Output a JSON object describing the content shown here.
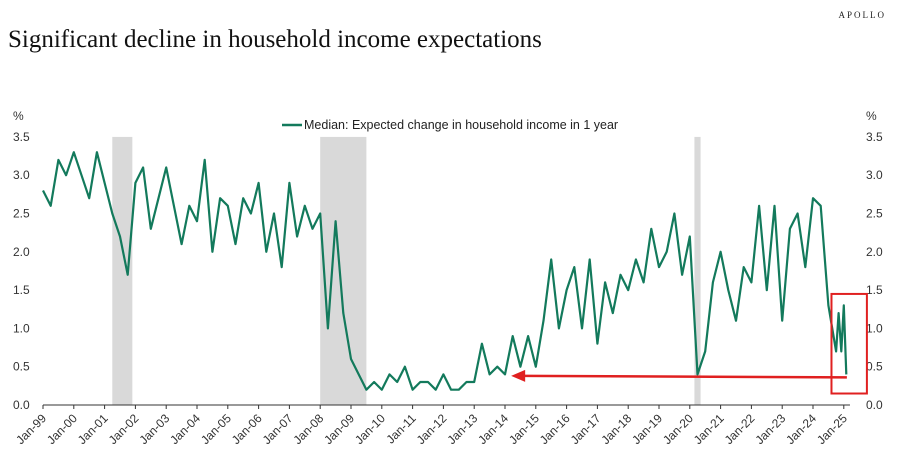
{
  "brand": "APOLLO",
  "title": "Significant decline in household income expectations",
  "chart_data": {
    "type": "line",
    "title": "Significant decline in household income expectations",
    "legend": "Median: Expected change in household income in 1 year",
    "legend_position": "top-center",
    "ylabel_left": "%",
    "ylabel_right": "%",
    "ylim": [
      0,
      3.5
    ],
    "yticks": [
      "0.0",
      "0.5",
      "1.0",
      "1.5",
      "2.0",
      "2.5",
      "3.0",
      "3.5"
    ],
    "xlim": [
      1999,
      2025.2
    ],
    "xticks": [
      "Jan-99",
      "Jan-00",
      "Jan-01",
      "Jan-02",
      "Jan-03",
      "Jan-04",
      "Jan-05",
      "Jan-06",
      "Jan-07",
      "Jan-08",
      "Jan-09",
      "Jan-10",
      "Jan-11",
      "Jan-12",
      "Jan-13",
      "Jan-14",
      "Jan-15",
      "Jan-16",
      "Jan-17",
      "Jan-18",
      "Jan-19",
      "Jan-20",
      "Jan-21",
      "Jan-22",
      "Jan-23",
      "Jan-24",
      "Jan-25"
    ],
    "series_color": "#137a5c",
    "quarterly_start_year": 1999,
    "quarterly_values": [
      2.8,
      2.6,
      3.2,
      3.0,
      3.3,
      3.0,
      2.7,
      3.3,
      2.9,
      2.5,
      2.2,
      1.7,
      2.9,
      3.1,
      2.3,
      2.7,
      3.1,
      2.6,
      2.1,
      2.6,
      2.4,
      3.2,
      2.0,
      2.7,
      2.6,
      2.1,
      2.7,
      2.5,
      2.9,
      2.0,
      2.5,
      1.8,
      2.9,
      2.2,
      2.6,
      2.3,
      2.5,
      1.0,
      2.4,
      1.2,
      0.6,
      0.4,
      0.2,
      0.3,
      0.2,
      0.4,
      0.3,
      0.5,
      0.2,
      0.3,
      0.3,
      0.2,
      0.4,
      0.2,
      0.2,
      0.3,
      0.3,
      0.8,
      0.4,
      0.5,
      0.4,
      0.9,
      0.5,
      0.9,
      0.5,
      1.1,
      1.9,
      1.0,
      1.5,
      1.8,
      1.0,
      1.9,
      0.8,
      1.6,
      1.2,
      1.7,
      1.5,
      1.9,
      1.6,
      2.3,
      1.8,
      2.0,
      2.5,
      1.7,
      2.2,
      0.4,
      0.7,
      1.6,
      2.0,
      1.5,
      1.1,
      1.8,
      1.6,
      2.6,
      1.5,
      2.6,
      1.1,
      2.3,
      2.5,
      1.8,
      2.7,
      2.6,
      1.3,
      0.7
    ],
    "tail_points": [
      [
        2024.83,
        1.2
      ],
      [
        2024.92,
        0.7
      ],
      [
        2025.0,
        1.3
      ],
      [
        2025.08,
        0.4
      ]
    ],
    "recessions": [
      [
        2001.25,
        2001.9
      ],
      [
        2008.0,
        2009.5
      ],
      [
        2020.15,
        2020.35
      ]
    ],
    "recession_color": "#d9d9d9",
    "annotation_color": "#e02020",
    "annotation_box": {
      "x": [
        2024.6,
        2025.75
      ],
      "y": [
        0.15,
        1.45
      ]
    },
    "annotation_arrow": {
      "from": [
        2025.1,
        0.36
      ],
      "to": [
        2014.2,
        0.38
      ]
    }
  }
}
